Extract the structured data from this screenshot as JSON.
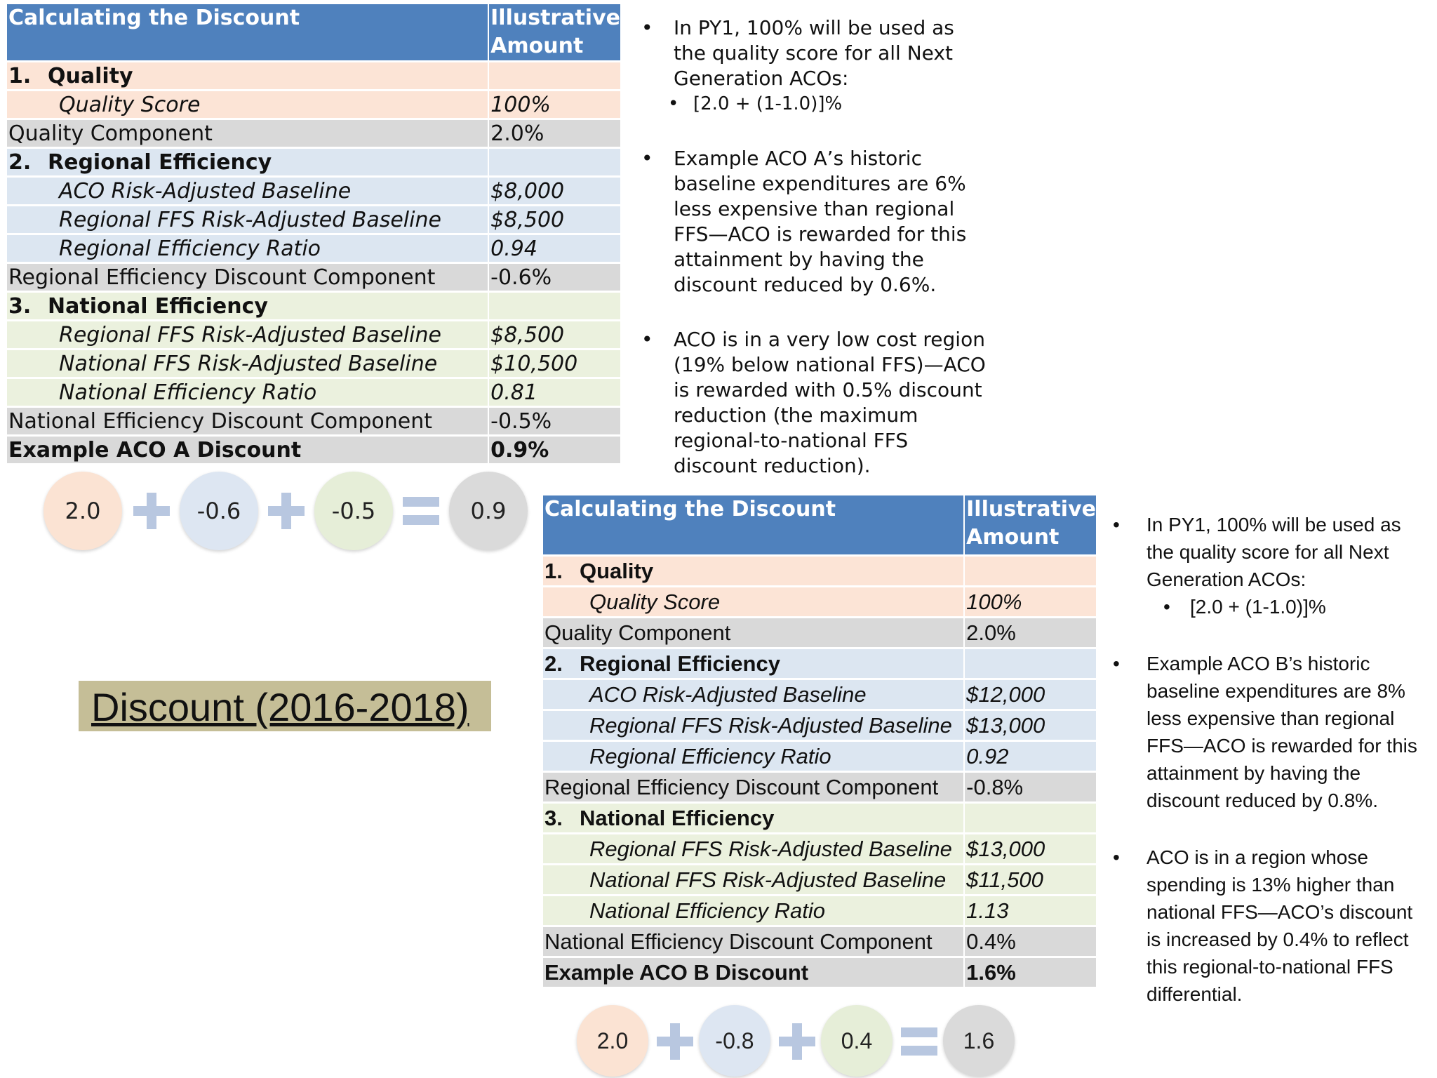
{
  "slide_title": "Discount (2016-2018)",
  "example_a": {
    "header": [
      "Calculating the Discount",
      "Illustrative",
      "Amount"
    ],
    "rows": [
      {
        "label_num": "1.",
        "label": "Quality",
        "value": "",
        "style": "quality",
        "type": "section"
      },
      {
        "label": "Quality Score",
        "value": "100%",
        "style": "quality",
        "type": "sub"
      },
      {
        "label": "Quality Component",
        "value": "2.0%",
        "style": "component",
        "type": "plain"
      },
      {
        "label_num": "2.",
        "label": "Regional Efficiency",
        "value": "",
        "style": "regional",
        "type": "section"
      },
      {
        "label": "ACO Risk-Adjusted Baseline",
        "value": "$8,000",
        "style": "regional",
        "type": "sub"
      },
      {
        "label": "Regional FFS Risk-Adjusted Baseline",
        "value": "$8,500",
        "style": "regional",
        "type": "sub"
      },
      {
        "label": "Regional Efficiency Ratio",
        "value": "0.94",
        "style": "regional",
        "type": "sub"
      },
      {
        "label": "Regional Efficiency Discount Component",
        "value": "-0.6%",
        "style": "component",
        "type": "plain"
      },
      {
        "label_num": "3.",
        "label": "National Efficiency",
        "value": "",
        "style": "national",
        "type": "section"
      },
      {
        "label": "Regional FFS Risk-Adjusted Baseline",
        "value": "$8,500",
        "style": "national",
        "type": "sub"
      },
      {
        "label": "National FFS Risk-Adjusted Baseline",
        "value": "$10,500",
        "style": "national",
        "type": "sub"
      },
      {
        "label": "National Efficiency Ratio",
        "value": "0.81",
        "style": "national",
        "type": "sub"
      },
      {
        "label": "National Efficiency Discount Component",
        "value": "-0.5%",
        "style": "component",
        "type": "plain"
      },
      {
        "label": "Example ACO A Discount",
        "value": "0.9%",
        "style": "component",
        "type": "total"
      }
    ],
    "equation": [
      "2.0",
      "-0.6",
      "-0.5",
      "0.9"
    ],
    "notes": [
      "In PY1, 100% will be used as the quality score for all Next Generation ACOs:",
      "[2.0 + (1-1.0)]%",
      "Example ACO A’s historic baseline expenditures are 6% less expensive than regional FFS—ACO is rewarded for this attainment by having the discount reduced by 0.6%.",
      "ACO is in a very low cost region (19% below national FFS)—ACO is rewarded  with 0.5% discount reduction (the maximum regional-to-national FFS discount reduction)."
    ]
  },
  "example_b": {
    "header": [
      "Calculating the Discount",
      "Illustrative",
      "Amount"
    ],
    "rows": [
      {
        "label_num": "1.",
        "label": "Quality",
        "value": "",
        "style": "quality",
        "type": "section"
      },
      {
        "label": "Quality Score",
        "value": "100%",
        "style": "quality",
        "type": "sub"
      },
      {
        "label": "Quality Component",
        "value": "2.0%",
        "style": "component",
        "type": "plain"
      },
      {
        "label_num": "2.",
        "label": "Regional Efficiency",
        "value": "",
        "style": "regional",
        "type": "section"
      },
      {
        "label": "ACO Risk-Adjusted Baseline",
        "value": "$12,000",
        "style": "regional",
        "type": "sub"
      },
      {
        "label": "Regional FFS Risk-Adjusted Baseline",
        "value": "$13,000",
        "style": "regional",
        "type": "sub"
      },
      {
        "label": "Regional Efficiency Ratio",
        "value": "0.92",
        "style": "regional",
        "type": "sub"
      },
      {
        "label": "Regional Efficiency Discount Component",
        "value": "-0.8%",
        "style": "component",
        "type": "plain"
      },
      {
        "label_num": "3.",
        "label": "National Efficiency",
        "value": "",
        "style": "national",
        "type": "section"
      },
      {
        "label": "Regional FFS Risk-Adjusted Baseline",
        "value": "$13,000",
        "style": "national",
        "type": "sub"
      },
      {
        "label": "National FFS Risk-Adjusted Baseline",
        "value": "$11,500",
        "style": "national",
        "type": "sub"
      },
      {
        "label": "National Efficiency Ratio",
        "value": "1.13",
        "style": "national",
        "type": "sub"
      },
      {
        "label": "National Efficiency Discount Component",
        "value": "0.4%",
        "style": "component",
        "type": "plain"
      },
      {
        "label": "Example ACO B Discount",
        "value": "1.6%",
        "style": "component",
        "type": "total"
      }
    ],
    "equation": [
      "2.0",
      "-0.8",
      "0.4",
      "1.6"
    ],
    "notes": [
      "In PY1, 100% will be used as the quality score for all Next Generation ACOs:",
      "[2.0 + (1-1.0)]%",
      "Example ACO B’s historic baseline expenditures are 8% less expensive than regional FFS—ACO is rewarded for this attainment by having the discount reduced by 0.8%.",
      "ACO is in a region whose spending is 13% higher than national FFS—ACO’s discount is increased by 0.4% to reflect this regional-to-national FFS differential."
    ]
  },
  "colors": {
    "header": "#4f81bd",
    "quality": "#fce4d6",
    "regional": "#dce6f1",
    "national": "#ebf1de",
    "component": "#d9d9d9",
    "title_box": "#c5be97",
    "operator": "#b8c7e0"
  }
}
